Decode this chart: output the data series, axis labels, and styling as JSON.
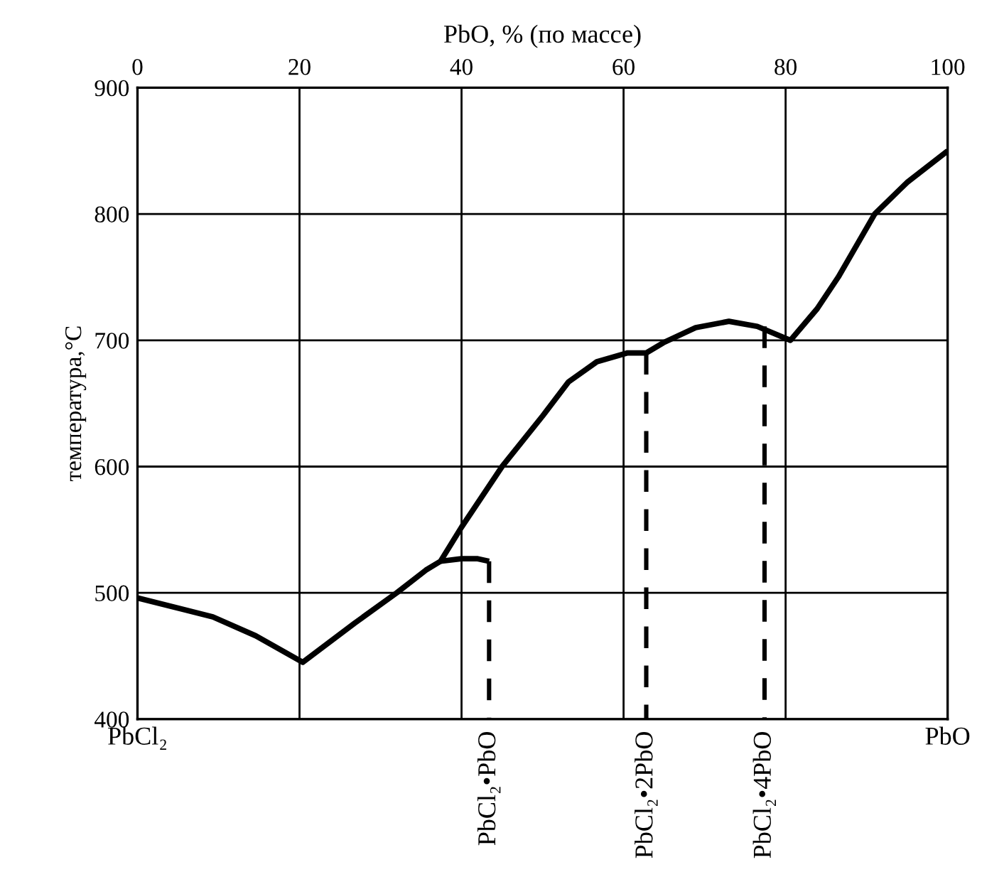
{
  "chart_data": {
    "type": "line",
    "xlabel": "PbO, % (по массе)",
    "ylabel": "температура,°C",
    "xlim": [
      0,
      100
    ],
    "xticks": [
      0,
      20,
      40,
      60,
      80,
      100
    ],
    "ylim": [
      400,
      900
    ],
    "yticks": [
      400,
      500,
      600,
      700,
      800,
      900
    ],
    "grid": true,
    "line_style": "solid",
    "marker": "none",
    "series": [
      {
        "color": "#000000",
        "x": [
          0,
          9.3,
          14.6,
          20.4,
          26.8,
          32,
          35.6,
          37.4,
          40,
          45,
          50,
          53.2,
          56.7,
          60.5,
          62.8,
          64.9,
          68.9,
          73,
          76.5,
          80.6,
          83.9,
          86.5,
          91,
          95,
          100
        ],
        "values": [
          496,
          481,
          466,
          445,
          476,
          500,
          518,
          525,
          552,
          600,
          640,
          667,
          683,
          690,
          690,
          698,
          710,
          715,
          711,
          700,
          725,
          750,
          800,
          825,
          850
        ]
      },
      {
        "color": "#000000",
        "x": [
          37.4,
          40,
          42,
          43.4
        ],
        "values": [
          525,
          527,
          527,
          525
        ]
      },
      {
        "color": "#000000",
        "line_style": "dashed",
        "x": [
          43.4,
          43.4
        ],
        "values": [
          525,
          400
        ]
      },
      {
        "color": "#000000",
        "line_style": "dashed",
        "x": [
          62.8,
          62.8
        ],
        "values": [
          690,
          400
        ]
      },
      {
        "color": "#000000",
        "line_style": "dashed",
        "x": [
          77.4,
          77.4
        ],
        "values": [
          711,
          400
        ]
      }
    ],
    "annotations": [
      "PbCl₂",
      {
        "text": "PbCl₂•PbO",
        "x": 43.4,
        "y": 400
      },
      {
        "text": "PbCl₂•2PbO",
        "x": 62.8,
        "y": 400
      },
      {
        "text": "PbCl₂•4PbO",
        "x": 77.4,
        "y": 400
      },
      "PbO"
    ]
  }
}
